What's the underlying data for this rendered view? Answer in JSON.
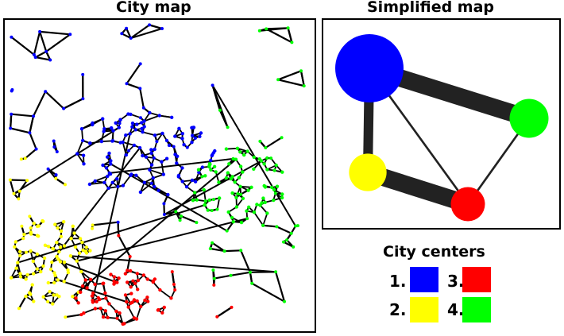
{
  "titles": {
    "city_map": "City map",
    "simplified_map": "Simplified map",
    "city_centers": "City centers"
  },
  "centers": [
    {
      "number": "1.",
      "color": "#0000ff"
    },
    {
      "number": "2.",
      "color": "#ffff00"
    },
    {
      "number": "3.",
      "color": "#ff0000"
    },
    {
      "number": "4.",
      "color": "#00ff00"
    }
  ],
  "simplified": {
    "nodes": [
      {
        "id": 1,
        "color": "#0000ff",
        "size": 1.0
      },
      {
        "id": 2,
        "color": "#ffff00",
        "size": 0.55
      },
      {
        "id": 3,
        "color": "#ff0000",
        "size": 0.5
      },
      {
        "id": 4,
        "color": "#00ff00",
        "size": 0.57
      }
    ],
    "edges": [
      {
        "from": 1,
        "to": 4,
        "weight": 1.0
      },
      {
        "from": 1,
        "to": 2,
        "weight": 0.55
      },
      {
        "from": 2,
        "to": 3,
        "weight": 1.0
      },
      {
        "from": 1,
        "to": 3,
        "weight": 0.12
      },
      {
        "from": 3,
        "to": 4,
        "weight": 0.12
      }
    ]
  }
}
